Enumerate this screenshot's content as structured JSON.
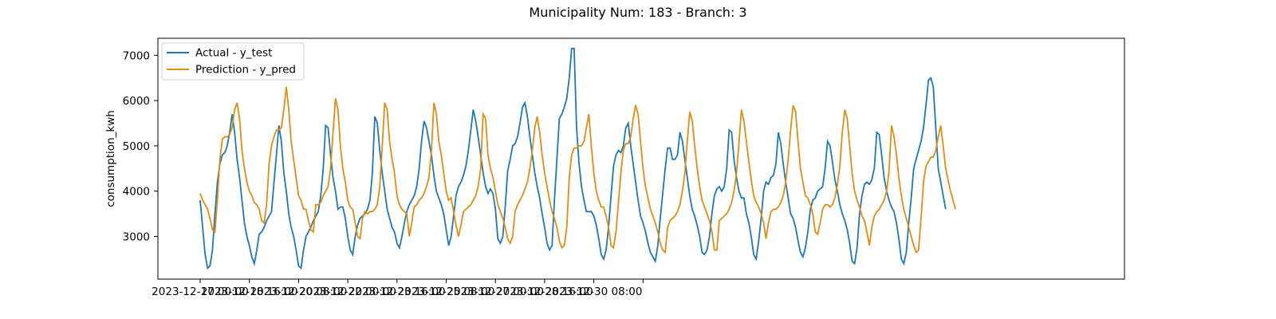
{
  "chart_data": {
    "type": "line",
    "title": "Municipality Num: 183 - Branch: 3",
    "xlabel": "",
    "ylabel": "consumption_kwh",
    "grid": false,
    "legend_placement": "upper-left",
    "x_tick_labels": [
      "2023-12-17 00:00",
      "2023-12-18 16:00",
      "2023-12-20 08:00",
      "2023-12-22 00:00",
      "2023-12-23 16:00",
      "2023-12-25 08:00",
      "2023-12-27 00:00",
      "2023-12-28 16:00",
      "2023-12-30 08:00",
      ""
    ],
    "y_ticks": [
      3000,
      4000,
      5000,
      6000,
      7000
    ],
    "ylim": [
      2000,
      7400
    ],
    "x_start": "2023-12-17 00:00",
    "x_step_hours": 2,
    "series": [
      {
        "name": "Actual - y_test",
        "color": "#1f77b4",
        "values": [
          3800,
          3200,
          2600,
          2300,
          2350,
          2700,
          3500,
          4200,
          4600,
          4800,
          4850,
          5000,
          5300,
          5700,
          5300,
          4700,
          4300,
          3800,
          3300,
          3000,
          2800,
          2550,
          2400,
          2700,
          3050,
          3100,
          3200,
          3350,
          3450,
          3550,
          4200,
          4800,
          5450,
          5100,
          4400,
          4000,
          3500,
          3200,
          3000,
          2700,
          2350,
          2300,
          2700,
          3000,
          3100,
          3200,
          3350,
          3450,
          3550,
          3900,
          4500,
          5450,
          5400,
          4800,
          4300,
          4000,
          3600,
          3650,
          3650,
          3400,
          3000,
          2700,
          2600,
          3000,
          3250,
          3400,
          3450,
          3500,
          3600,
          3800,
          4400,
          5650,
          5500,
          4900,
          4400,
          4000,
          3600,
          3400,
          3200,
          3100,
          2850,
          2750,
          3000,
          3300,
          3550,
          3700,
          3800,
          3900,
          4100,
          4500,
          5100,
          5550,
          5400,
          5100,
          4800,
          4350,
          4000,
          3850,
          3700,
          3500,
          3150,
          2800,
          3000,
          3450,
          3900,
          4100,
          4200,
          4350,
          4550,
          4900,
          5350,
          5800,
          5550,
          5200,
          4800,
          4400,
          4100,
          3950,
          4050,
          3950,
          3600,
          2950,
          2850,
          3000,
          3650,
          4450,
          4700,
          5000,
          5050,
          5200,
          5500,
          5850,
          5950,
          5650,
          5200,
          4800,
          4400,
          4100,
          3850,
          3500,
          3200,
          2850,
          2700,
          2800,
          3800,
          4700,
          5600,
          5700,
          5850,
          6050,
          6500,
          7150,
          7150,
          5400,
          4600,
          4100,
          3800,
          3550,
          3550,
          3550,
          3450,
          3250,
          2950,
          2600,
          2500,
          2700,
          3200,
          3900,
          4550,
          4800,
          4900,
          4850,
          5000,
          5400,
          5500,
          5000,
          4600,
          4200,
          3800,
          3450,
          3300,
          3100,
          2850,
          2650,
          2550,
          2450,
          2800,
          3400,
          3950,
          4500,
          4950,
          4950,
          4700,
          4700,
          4800,
          5300,
          5100,
          4700,
          4300,
          3900,
          3600,
          3450,
          3250,
          3000,
          2650,
          2600,
          2700,
          3000,
          3500,
          3900,
          4050,
          4100,
          4000,
          4100,
          4500,
          5350,
          5300,
          4700,
          4300,
          4000,
          3850,
          3850,
          3500,
          3300,
          3000,
          2600,
          2500,
          2900,
          3400,
          4000,
          4200,
          4150,
          4300,
          4350,
          4600,
          5300,
          5050,
          4600,
          4200,
          3850,
          3500,
          3400,
          3200,
          2900,
          2650,
          2550,
          2750,
          3100,
          3600,
          3800,
          3850,
          4000,
          4050,
          4100,
          4500,
          5100,
          5000,
          4650,
          4250,
          4000,
          3700,
          3500,
          3350,
          3150,
          2850,
          2450,
          2400,
          2750,
          3500,
          3900,
          4150,
          4200,
          4150,
          4250,
          4500,
          5300,
          5250,
          4800,
          4300,
          4000,
          3800,
          3650,
          3550,
          3300,
          2950,
          2500,
          2400,
          2650,
          3300,
          3850,
          4500,
          4700,
          4900,
          5100,
          5400,
          5900,
          6450,
          6500,
          6300,
          5400,
          4500,
          4200,
          3900,
          3600
        ]
      },
      {
        "name": "Prediction - y_pred",
        "color": "#df8d16",
        "values": [
          3950,
          3800,
          3700,
          3600,
          3400,
          3150,
          3100,
          3800,
          4700,
          5150,
          5200,
          5200,
          5250,
          5400,
          5800,
          5950,
          5600,
          4900,
          4500,
          4200,
          4000,
          3900,
          3750,
          3700,
          3600,
          3350,
          3300,
          3700,
          4600,
          5000,
          5200,
          5350,
          5350,
          5400,
          5800,
          6300,
          5800,
          5100,
          4700,
          4300,
          3900,
          3800,
          3600,
          3600,
          3350,
          3150,
          3100,
          3700,
          3700,
          3750,
          3900,
          4000,
          4100,
          4500,
          5300,
          6050,
          5800,
          5000,
          4500,
          4200,
          3800,
          3650,
          3600,
          3300,
          3000,
          2950,
          3400,
          3550,
          3500,
          3550,
          3550,
          3600,
          3700,
          4100,
          5000,
          5950,
          5800,
          5100,
          4700,
          4400,
          3900,
          3700,
          3600,
          3550,
          3500,
          3000,
          3300,
          3650,
          3700,
          3800,
          3850,
          3950,
          4100,
          4300,
          4900,
          5950,
          5700,
          5100,
          4800,
          4400,
          4000,
          3800,
          3850,
          3550,
          3250,
          3000,
          3250,
          3550,
          3600,
          3650,
          3700,
          3800,
          3900,
          4100,
          4500,
          5700,
          5600,
          4800,
          4500,
          4300,
          4000,
          3700,
          3550,
          3400,
          3200,
          2950,
          2850,
          3000,
          3550,
          3700,
          3800,
          3900,
          4050,
          4200,
          4500,
          4900,
          5400,
          5650,
          5300,
          4800,
          4400,
          4100,
          3800,
          3550,
          3400,
          3200,
          2900,
          2750,
          2800,
          3200,
          4300,
          4800,
          4950,
          4950,
          5000,
          5000,
          5100,
          5400,
          5700,
          5000,
          4400,
          4000,
          3800,
          3650,
          3650,
          3450,
          3200,
          2800,
          2750,
          3100,
          3750,
          4400,
          4900,
          5050,
          5050,
          5200,
          5600,
          5900,
          5700,
          5100,
          4500,
          4100,
          3850,
          3600,
          3450,
          3300,
          3100,
          2850,
          2700,
          2650,
          3200,
          3350,
          3400,
          3450,
          3550,
          3700,
          4000,
          4400,
          5100,
          5750,
          5550,
          5000,
          4500,
          4100,
          3800,
          3650,
          3500,
          3350,
          3100,
          2700,
          2700,
          3350,
          3400,
          3450,
          3500,
          3600,
          3750,
          4000,
          4400,
          5050,
          5800,
          5550,
          5100,
          4650,
          4250,
          3900,
          3750,
          3650,
          3500,
          3300,
          2950,
          3300,
          3550,
          3600,
          3600,
          3650,
          3750,
          3900,
          4200,
          4700,
          5350,
          5900,
          5750,
          5100,
          4500,
          4200,
          3900,
          3850,
          3700,
          3500,
          3100,
          3050,
          3300,
          3600,
          3700,
          3700,
          3650,
          3700,
          3850,
          4150,
          4550,
          5300,
          5800,
          5600,
          5000,
          4400,
          4000,
          3800,
          3650,
          3450,
          3350,
          3100,
          2800,
          3200,
          3450,
          3550,
          3600,
          3700,
          3800,
          4000,
          4450,
          5450,
          5200,
          4800,
          4300,
          3900,
          3600,
          3400,
          3200,
          3000,
          2800,
          2650,
          2700,
          3400,
          4200,
          4550,
          4650,
          4750,
          4750,
          4900,
          5200,
          5450,
          5000,
          4500,
          4250,
          4000,
          3800,
          3600
        ]
      }
    ]
  }
}
